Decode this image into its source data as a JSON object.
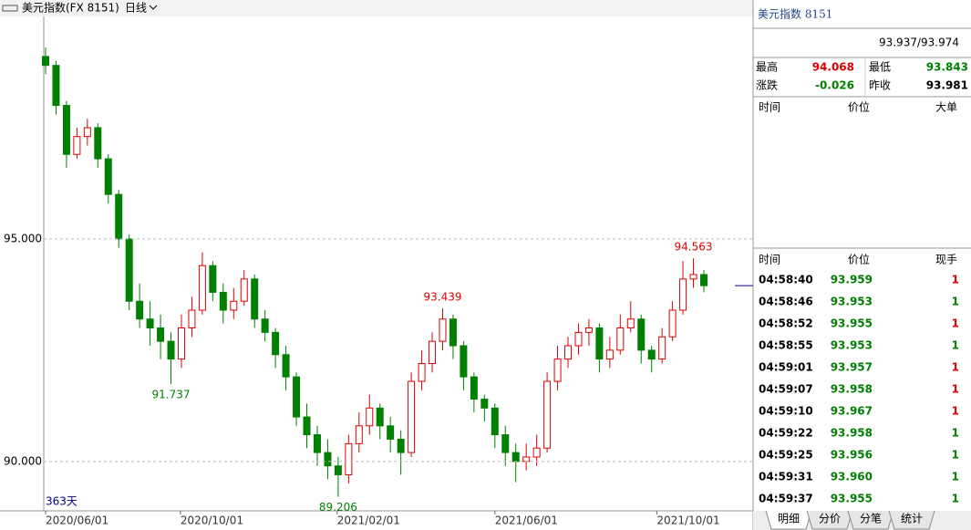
{
  "header": {
    "title": "美元指数(FX 8151)",
    "period": "日线"
  },
  "chart_data": {
    "type": "candlestick",
    "up_color": "#e00000",
    "down_color": "#008000",
    "grid": true,
    "span_label": "363天",
    "ylim": [
      88.89,
      100
    ],
    "yticks": [
      {
        "value": 95,
        "label": "95.000"
      },
      {
        "value": 90,
        "label": "90.000"
      }
    ],
    "xlim": [
      0,
      63
    ],
    "xticks": [
      {
        "value": 0,
        "label": "2020/06/01"
      },
      {
        "value": 12.9,
        "label": "2020/10/01"
      },
      {
        "value": 27.9,
        "label": "2021/02/01"
      },
      {
        "value": 43.0,
        "label": "2021/06/01"
      },
      {
        "value": 58.5,
        "label": "2021/10/01"
      }
    ],
    "ohlc": [
      [
        99.1,
        99.3,
        98.7,
        98.9
      ],
      [
        98.9,
        99.0,
        97.8,
        98.0
      ],
      [
        98.0,
        98.1,
        96.6,
        96.9
      ],
      [
        96.9,
        97.5,
        96.8,
        97.3
      ],
      [
        97.3,
        97.7,
        97.1,
        97.5
      ],
      [
        97.5,
        97.6,
        96.6,
        96.8
      ],
      [
        96.8,
        96.9,
        95.8,
        96.0
      ],
      [
        96.0,
        96.1,
        94.8,
        95.0
      ],
      [
        95.0,
        95.1,
        93.4,
        93.6
      ],
      [
        93.6,
        94.0,
        93.0,
        93.2
      ],
      [
        93.2,
        93.6,
        92.6,
        93.0
      ],
      [
        93.0,
        93.3,
        92.3,
        92.7
      ],
      [
        92.7,
        92.9,
        91.737,
        92.3
      ],
      [
        92.3,
        93.3,
        92.1,
        93.0
      ],
      [
        93.0,
        93.7,
        92.8,
        93.4
      ],
      [
        93.4,
        94.7,
        93.3,
        94.4
      ],
      [
        94.4,
        94.5,
        93.6,
        93.8
      ],
      [
        93.8,
        94.0,
        93.1,
        93.4
      ],
      [
        93.4,
        93.9,
        93.2,
        93.6
      ],
      [
        93.6,
        94.3,
        93.5,
        94.1
      ],
      [
        94.1,
        94.2,
        93.0,
        93.2
      ],
      [
        93.2,
        93.4,
        92.7,
        92.9
      ],
      [
        92.9,
        93.0,
        92.1,
        92.4
      ],
      [
        92.4,
        92.6,
        91.6,
        91.9
      ],
      [
        91.9,
        92.0,
        90.8,
        91.0
      ],
      [
        91.0,
        91.3,
        90.3,
        90.6
      ],
      [
        90.6,
        90.8,
        89.9,
        90.2
      ],
      [
        90.2,
        90.5,
        89.6,
        89.9
      ],
      [
        89.9,
        90.1,
        89.206,
        89.7
      ],
      [
        89.7,
        90.6,
        89.5,
        90.4
      ],
      [
        90.4,
        91.1,
        90.2,
        90.8
      ],
      [
        90.8,
        91.5,
        90.6,
        91.2
      ],
      [
        91.2,
        91.3,
        90.5,
        90.8
      ],
      [
        90.8,
        91.0,
        90.2,
        90.5
      ],
      [
        90.5,
        90.7,
        89.7,
        90.2
      ],
      [
        90.2,
        92.0,
        90.1,
        91.8
      ],
      [
        91.8,
        92.5,
        91.6,
        92.2
      ],
      [
        92.2,
        92.9,
        92.0,
        92.7
      ],
      [
        92.7,
        93.439,
        92.5,
        93.2
      ],
      [
        93.2,
        93.3,
        92.3,
        92.6
      ],
      [
        92.6,
        92.7,
        91.6,
        91.9
      ],
      [
        91.9,
        92.0,
        91.1,
        91.4
      ],
      [
        91.4,
        91.5,
        90.9,
        91.2
      ],
      [
        91.2,
        91.3,
        90.3,
        90.6
      ],
      [
        90.6,
        90.8,
        89.9,
        90.2
      ],
      [
        90.2,
        90.4,
        89.533,
        90.0
      ],
      [
        90.0,
        90.4,
        89.8,
        90.1
      ],
      [
        90.1,
        90.6,
        89.9,
        90.3
      ],
      [
        90.3,
        92.0,
        90.2,
        91.8
      ],
      [
        91.8,
        92.6,
        91.6,
        92.3
      ],
      [
        92.3,
        92.8,
        92.1,
        92.6
      ],
      [
        92.6,
        93.1,
        92.4,
        92.9
      ],
      [
        92.9,
        93.2,
        92.6,
        93.0
      ],
      [
        93.0,
        93.1,
        92.0,
        92.3
      ],
      [
        92.3,
        92.8,
        92.1,
        92.5
      ],
      [
        92.5,
        93.3,
        92.4,
        93.0
      ],
      [
        93.0,
        93.6,
        92.9,
        93.2
      ],
      [
        93.2,
        93.3,
        92.2,
        92.5
      ],
      [
        92.5,
        92.6,
        92.0,
        92.3
      ],
      [
        92.3,
        93.0,
        92.2,
        92.8
      ],
      [
        92.8,
        93.6,
        92.7,
        93.4
      ],
      [
        93.4,
        94.5,
        93.3,
        94.1
      ],
      [
        94.1,
        94.563,
        93.9,
        94.2
      ],
      [
        94.2,
        94.3,
        93.8,
        93.95
      ]
    ]
  },
  "quote": {
    "name": "美元指数 8151",
    "price": "93.937/93.974",
    "stats": [
      [
        "最高",
        94.068,
        "最低",
        93.843
      ],
      [
        "涨跌",
        -0.026,
        "昨收",
        93.981
      ]
    ],
    "big_header": [
      "时间",
      "价位",
      "大单"
    ]
  },
  "trades": {
    "header": [
      "时间",
      "价位",
      "现手"
    ],
    "rows": [
      [
        "04:58:40",
        "93.959",
        1
      ],
      [
        "04:58:46",
        "93.953",
        1
      ],
      [
        "04:58:52",
        "93.955",
        1
      ],
      [
        "04:58:55",
        "93.953",
        1
      ],
      [
        "04:59:01",
        "93.957",
        1
      ],
      [
        "04:59:07",
        "93.958",
        1
      ],
      [
        "04:59:10",
        "93.967",
        1
      ],
      [
        "04:59:22",
        "93.958",
        1
      ],
      [
        "04:59:25",
        "93.956",
        1
      ],
      [
        "04:59:31",
        "93.960",
        1
      ],
      [
        "04:59:37",
        "93.955",
        1
      ]
    ]
  },
  "tabs": [
    "明细",
    "分价",
    "分笔",
    "统计"
  ]
}
